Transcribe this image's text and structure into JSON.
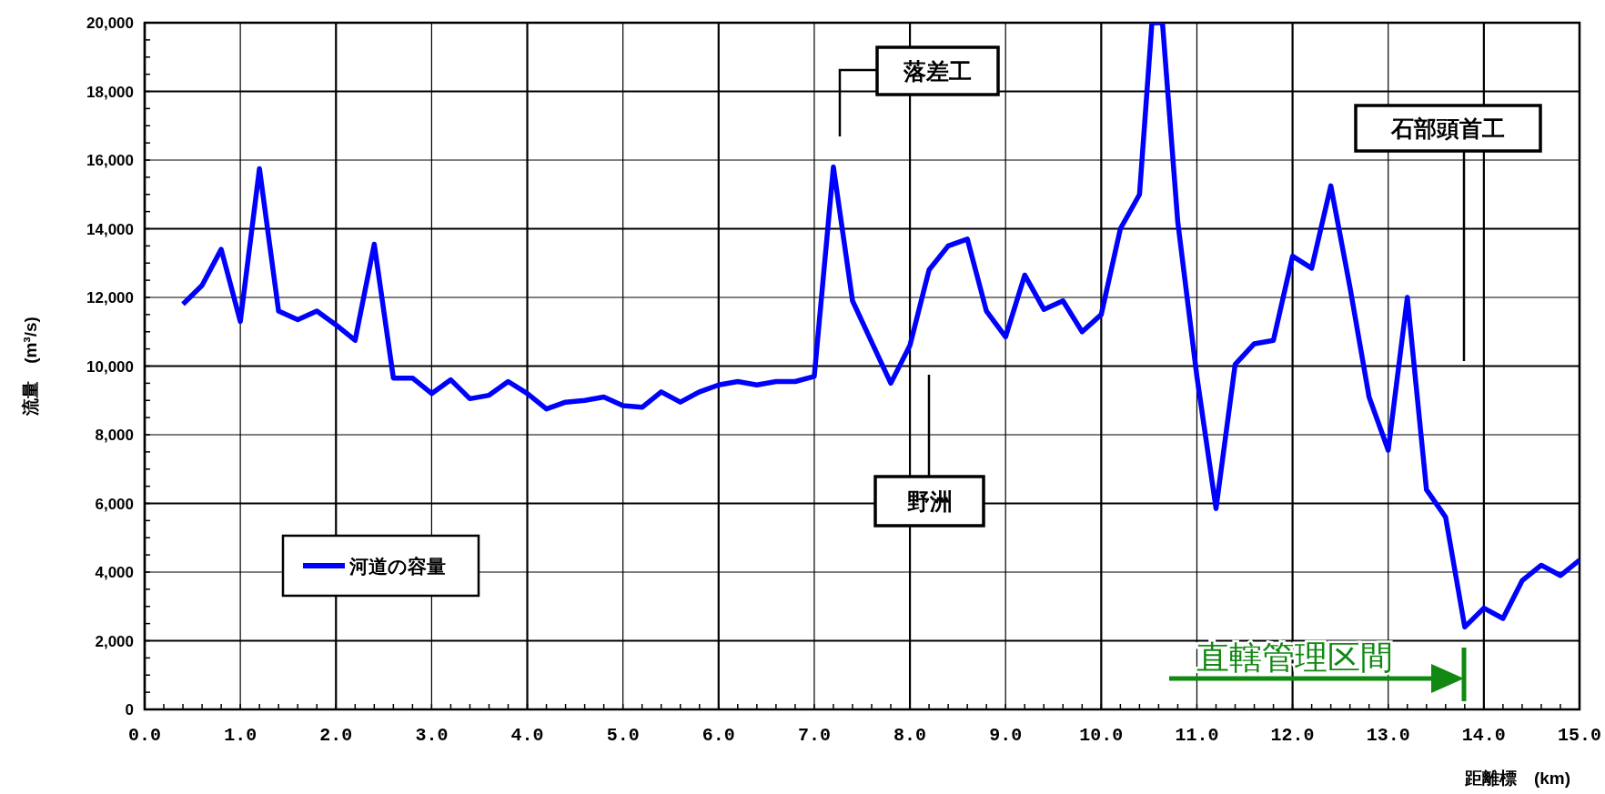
{
  "chart_data": {
    "type": "line",
    "xlabel": "距離標　(km)",
    "ylabel": "流量　(m³/s)",
    "x": [
      0.4,
      0.6,
      0.8,
      1.0,
      1.2,
      1.4,
      1.6,
      1.8,
      2.0,
      2.2,
      2.4,
      2.6,
      2.8,
      3.0,
      3.2,
      3.4,
      3.6,
      3.8,
      4.0,
      4.2,
      4.4,
      4.6,
      4.8,
      5.0,
      5.2,
      5.4,
      5.6,
      5.8,
      6.0,
      6.2,
      6.4,
      6.6,
      6.8,
      7.0,
      7.2,
      7.4,
      7.6,
      7.8,
      8.0,
      8.2,
      8.4,
      8.6,
      8.8,
      9.0,
      9.2,
      9.4,
      9.6,
      9.8,
      10.0,
      10.2,
      10.4,
      10.53,
      10.64,
      10.8,
      11.0,
      11.2,
      11.4,
      11.6,
      11.8,
      12.0,
      12.2,
      12.4,
      12.6,
      12.8,
      13.0,
      13.2,
      13.4,
      13.6,
      13.8,
      14.0,
      14.2,
      14.4,
      14.6,
      14.8,
      15.0
    ],
    "series": [
      {
        "name": "河道の容量",
        "color": "#0000ff",
        "values": [
          11800,
          12350,
          13400,
          11300,
          15750,
          11600,
          11350,
          11600,
          11200,
          10750,
          13550,
          9650,
          9650,
          9200,
          9600,
          9050,
          9150,
          9550,
          9200,
          8750,
          8950,
          9000,
          9100,
          8850,
          8800,
          9250,
          8950,
          9250,
          9450,
          9550,
          9450,
          9550,
          9550,
          9700,
          15800,
          11900,
          10700,
          9500,
          10600,
          12800,
          13500,
          13700,
          11600,
          10850,
          12650,
          11650,
          11900,
          11000,
          11500,
          14000,
          15000,
          20000,
          20000,
          14200,
          9700,
          5850,
          10050,
          10650,
          10750,
          13200,
          12850,
          15250,
          12300,
          9100,
          7550,
          12000,
          6400,
          5600,
          2400,
          2950,
          2650,
          3750,
          4200,
          3900,
          4350
        ]
      }
    ],
    "xlim": [
      0,
      15
    ],
    "ylim": [
      0,
      20000
    ],
    "xticks": [
      {
        "value": 0,
        "label": "0.0"
      },
      {
        "value": 1,
        "label": "1.0"
      },
      {
        "value": 2,
        "label": "2.0"
      },
      {
        "value": 3,
        "label": "3.0"
      },
      {
        "value": 4,
        "label": "4.0"
      },
      {
        "value": 5,
        "label": "5.0"
      },
      {
        "value": 6,
        "label": "6.0"
      },
      {
        "value": 7,
        "label": "7.0"
      },
      {
        "value": 8,
        "label": "8.0"
      },
      {
        "value": 9,
        "label": "9.0"
      },
      {
        "value": 10,
        "label": "10.0"
      },
      {
        "value": 11,
        "label": "11.0"
      },
      {
        "value": 12,
        "label": "12.0"
      },
      {
        "value": 13,
        "label": "13.0"
      },
      {
        "value": 14,
        "label": "14.0"
      },
      {
        "value": 15,
        "label": "15.0"
      }
    ],
    "yticks": [
      {
        "value": 0,
        "label": "0"
      },
      {
        "value": 2000,
        "label": "2,000"
      },
      {
        "value": 4000,
        "label": "4,000"
      },
      {
        "value": 6000,
        "label": "6,000"
      },
      {
        "value": 8000,
        "label": "8,000"
      },
      {
        "value": 10000,
        "label": "10,000"
      },
      {
        "value": 12000,
        "label": "12,000"
      },
      {
        "value": 14000,
        "label": "14,000"
      },
      {
        "value": 16000,
        "label": "16,000"
      },
      {
        "value": 18000,
        "label": "18,000"
      },
      {
        "value": 20000,
        "label": "20,000"
      }
    ],
    "grid": true,
    "legend": "bottom left",
    "marker": "none",
    "line_style": "solid",
    "annotations": [
      "落差工",
      "野洲",
      "石部頭首工",
      "直轄管理区間"
    ]
  }
}
